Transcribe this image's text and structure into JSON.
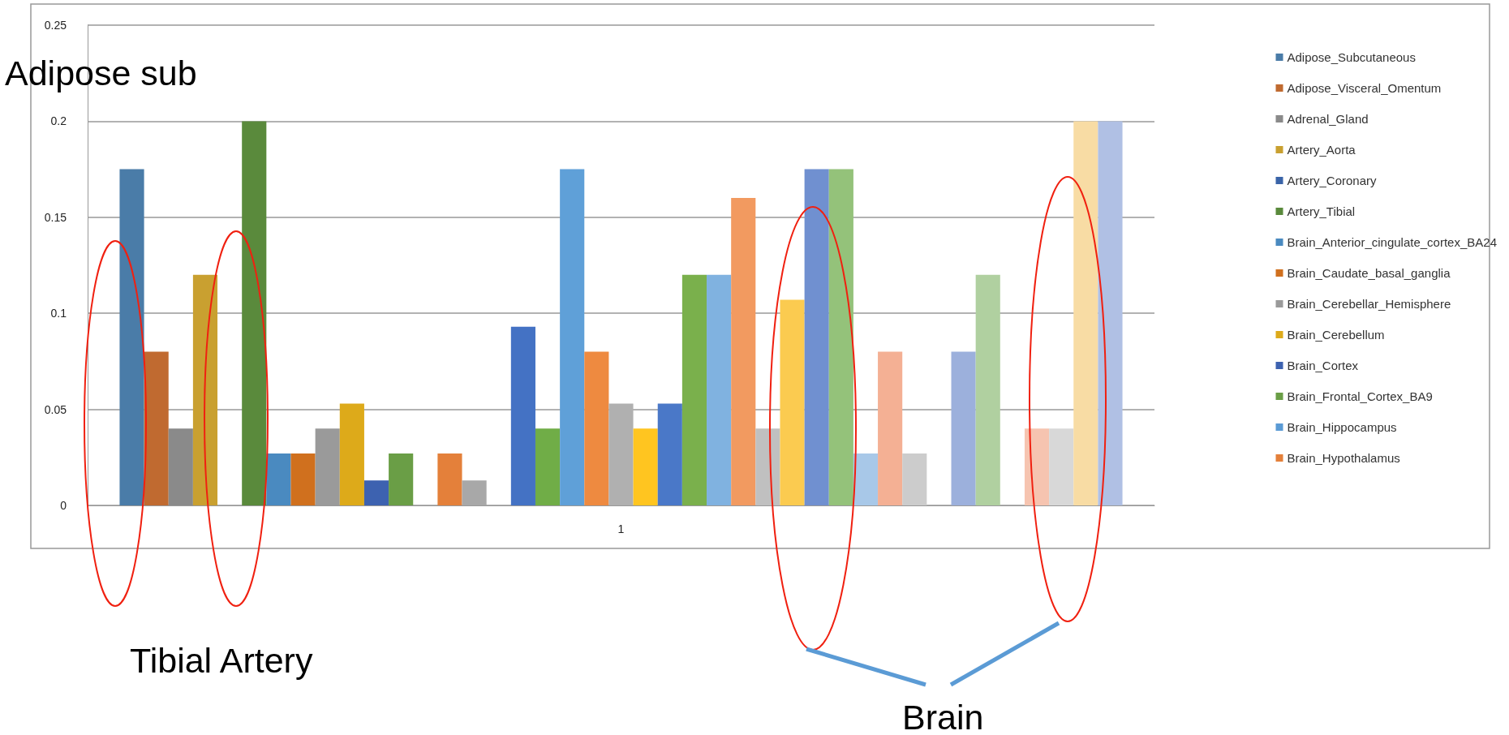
{
  "chart_data": {
    "type": "bar",
    "categories": [
      "1"
    ],
    "ylim": [
      0,
      0.25
    ],
    "yticks": [
      0,
      0.05,
      0.1,
      0.15,
      0.2,
      0.25
    ],
    "grid": "y",
    "legend": "right",
    "annotations": [
      "Adipose sub",
      "Tibial Artery",
      "Brain"
    ],
    "series": [
      {
        "name": "Adipose_Subcutaneous",
        "color": "#4a7ca8",
        "values": [
          0.175
        ]
      },
      {
        "name": "Adipose_Visceral_Omentum",
        "color": "#c06a30",
        "values": [
          0.08
        ]
      },
      {
        "name": "Adrenal_Gland",
        "color": "#8a8a8a",
        "values": [
          0.04
        ]
      },
      {
        "name": "Artery_Aorta",
        "color": "#c9a030",
        "values": [
          0.12
        ]
      },
      {
        "name": "Artery_Coronary",
        "color": "#3a64a8",
        "values": [
          0
        ]
      },
      {
        "name": "Artery_Tibial",
        "color": "#5a8a3c",
        "values": [
          0.2
        ]
      },
      {
        "name": "Brain_Anterior_cingulate_cortex_BA24",
        "color": "#4a8ac0",
        "values": [
          0.027
        ]
      },
      {
        "name": "Brain_Caudate_basal_ganglia",
        "color": "#d0701e",
        "values": [
          0.027
        ]
      },
      {
        "name": "Brain_Cerebellar_Hemisphere",
        "color": "#9a9a9a",
        "values": [
          0.04
        ]
      },
      {
        "name": "Brain_Cerebellum",
        "color": "#ddaa1a",
        "values": [
          0.053
        ]
      },
      {
        "name": "Brain_Cortex",
        "color": "#3d62b0",
        "values": [
          0.013
        ]
      },
      {
        "name": "Brain_Frontal_Cortex_BA9",
        "color": "#6a9e46",
        "values": [
          0.027
        ]
      },
      {
        "name": "Brain_Hippocampus",
        "color": "#5b9bd5",
        "values": [
          0
        ]
      },
      {
        "name": "Brain_Hypothalamus",
        "color": "#e4803a",
        "values": [
          0.027
        ]
      },
      {
        "color": "#a8a8a8",
        "values": [
          0.013
        ]
      },
      {
        "color": "#f2b820",
        "values": [
          0
        ]
      },
      {
        "color": "#4472c4",
        "values": [
          0.093
        ]
      },
      {
        "color": "#70ad47",
        "values": [
          0.04
        ]
      },
      {
        "color": "#5fa0d8",
        "values": [
          0.175
        ]
      },
      {
        "color": "#ee8a40",
        "values": [
          0.08
        ]
      },
      {
        "color": "#b0b0b0",
        "values": [
          0.053
        ]
      },
      {
        "color": "#ffc520",
        "values": [
          0.04
        ]
      },
      {
        "color": "#4a78c8",
        "values": [
          0.053
        ]
      },
      {
        "color": "#7ab04c",
        "values": [
          0.12
        ]
      },
      {
        "color": "#80b2e0",
        "values": [
          0.12
        ]
      },
      {
        "color": "#f29a60",
        "values": [
          0.16
        ]
      },
      {
        "color": "#c0c0c0",
        "values": [
          0.04
        ]
      },
      {
        "color": "#fbcb50",
        "values": [
          0.107
        ]
      },
      {
        "color": "#7090d0",
        "values": [
          0.175
        ]
      },
      {
        "color": "#94c27a",
        "values": [
          0.175
        ]
      },
      {
        "color": "#a8c8e8",
        "values": [
          0.027
        ]
      },
      {
        "color": "#f4b094",
        "values": [
          0.08
        ]
      },
      {
        "color": "#cccccc",
        "values": [
          0.027
        ]
      },
      {
        "color": "#fcd890",
        "values": [
          0
        ]
      },
      {
        "color": "#9cb0dc",
        "values": [
          0.08
        ]
      },
      {
        "color": "#b0d0a0",
        "values": [
          0.12
        ]
      },
      {
        "color": "#c0d8f0",
        "values": [
          0
        ]
      },
      {
        "color": "#f6c4b0",
        "values": [
          0.04
        ]
      },
      {
        "color": "#d8d8d8",
        "values": [
          0.04
        ]
      },
      {
        "color": "#f8dca4",
        "values": [
          0.2
        ]
      },
      {
        "color": "#b0c0e4",
        "values": [
          0.2
        ]
      }
    ]
  }
}
